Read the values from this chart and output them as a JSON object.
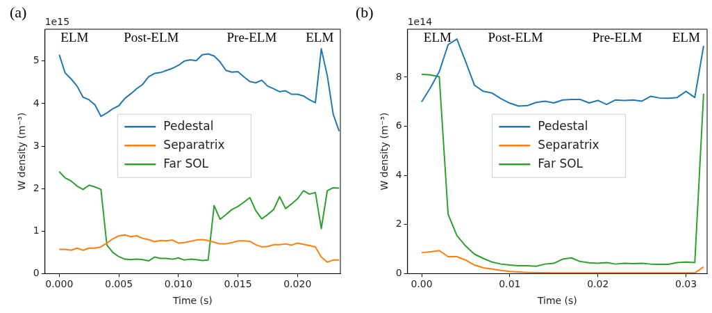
{
  "chart_data": [
    {
      "type": "line",
      "title": "(a)",
      "xlabel": "Time (s)",
      "ylabel": "W density (m⁻³)",
      "legend": "center",
      "x": [
        0,
        0.0005,
        0.001,
        0.0015,
        0.002,
        0.0025,
        0.003,
        0.0035,
        0.004,
        0.0045,
        0.005,
        0.0055,
        0.006,
        0.0065,
        0.007,
        0.0075,
        0.008,
        0.0085,
        0.009,
        0.0095,
        0.01,
        0.0105,
        0.011,
        0.0115,
        0.012,
        0.0125,
        0.013,
        0.0135,
        0.014,
        0.0145,
        0.015,
        0.0155,
        0.016,
        0.0165,
        0.017,
        0.0175,
        0.018,
        0.0185,
        0.019,
        0.0195,
        0.02,
        0.0205,
        0.021,
        0.0215,
        0.022,
        0.0225,
        0.023,
        0.0235
      ],
      "series": [
        {
          "name": "Pedestal",
          "color": "#1f77b4",
          "values": [
            5.15,
            4.72,
            4.58,
            4.41,
            4.15,
            4.09,
            3.97,
            3.7,
            3.78,
            3.88,
            3.95,
            4.12,
            4.23,
            4.35,
            4.45,
            4.63,
            4.71,
            4.73,
            4.78,
            4.83,
            4.9,
            5.0,
            5.03,
            5.01,
            5.15,
            5.17,
            5.12,
            4.98,
            4.78,
            4.74,
            4.75,
            4.63,
            4.52,
            4.49,
            4.55,
            4.41,
            4.35,
            4.28,
            4.3,
            4.22,
            4.22,
            4.18,
            4.09,
            4.02,
            5.29,
            4.66,
            3.75,
            3.35
          ]
        },
        {
          "name": "Separatrix",
          "color": "#ff7f0e",
          "values": [
            0.57,
            0.57,
            0.55,
            0.6,
            0.55,
            0.6,
            0.6,
            0.63,
            0.72,
            0.82,
            0.89,
            0.91,
            0.87,
            0.89,
            0.83,
            0.8,
            0.75,
            0.78,
            0.77,
            0.79,
            0.72,
            0.73,
            0.76,
            0.79,
            0.8,
            0.78,
            0.74,
            0.7,
            0.7,
            0.73,
            0.77,
            0.77,
            0.76,
            0.68,
            0.63,
            0.64,
            0.68,
            0.68,
            0.7,
            0.67,
            0.72,
            0.69,
            0.66,
            0.63,
            0.39,
            0.27,
            0.32,
            0.32
          ]
        },
        {
          "name": "Far SOL",
          "color": "#2ca02c",
          "values": [
            2.4,
            2.25,
            2.18,
            2.06,
            1.98,
            2.08,
            2.04,
            1.98,
            0.67,
            0.5,
            0.4,
            0.34,
            0.33,
            0.34,
            0.33,
            0.3,
            0.39,
            0.36,
            0.36,
            0.34,
            0.37,
            0.32,
            0.34,
            0.33,
            0.31,
            0.32,
            1.6,
            1.28,
            1.39,
            1.51,
            1.58,
            1.68,
            1.79,
            1.48,
            1.29,
            1.39,
            1.51,
            1.81,
            1.53,
            1.64,
            1.76,
            1.95,
            1.87,
            1.91,
            1.06,
            1.95,
            2.02,
            2.01
          ]
        }
      ],
      "xlim": [
        -0.0012,
        0.0236
      ],
      "ylim": [
        0,
        5.75
      ],
      "xticks": [
        {
          "value": 0,
          "label": "0.000"
        },
        {
          "value": 0.005,
          "label": "0.005"
        },
        {
          "value": 0.01,
          "label": "0.010"
        },
        {
          "value": 0.015,
          "label": "0.015"
        },
        {
          "value": 0.02,
          "label": "0.020"
        }
      ],
      "yticks": [
        0,
        1,
        2,
        3,
        4,
        5
      ],
      "annotations": [
        "1e15",
        "ELM",
        "Post-ELM",
        "Pre-ELM",
        "ELM"
      ]
    },
    {
      "type": "line",
      "title": "(b)",
      "xlabel": "Time (s)",
      "ylabel": "W density (m⁻³)",
      "legend": "center",
      "x": [
        0,
        0.001,
        0.002,
        0.003,
        0.004,
        0.005,
        0.006,
        0.007,
        0.008,
        0.009,
        0.01,
        0.011,
        0.012,
        0.013,
        0.014,
        0.015,
        0.016,
        0.017,
        0.018,
        0.019,
        0.02,
        0.021,
        0.022,
        0.023,
        0.024,
        0.025,
        0.026,
        0.027,
        0.028,
        0.029,
        0.03,
        0.031,
        0.032
      ],
      "series": [
        {
          "name": "Pedestal",
          "color": "#1f77b4",
          "values": [
            6.99,
            7.57,
            8.22,
            9.32,
            9.55,
            8.62,
            7.67,
            7.42,
            7.35,
            7.12,
            6.94,
            6.82,
            6.84,
            6.97,
            7.02,
            6.95,
            7.07,
            7.09,
            7.09,
            6.95,
            7.05,
            6.89,
            7.07,
            7.05,
            7.07,
            7.02,
            7.22,
            7.15,
            7.14,
            7.17,
            7.42,
            7.17,
            9.27
          ]
        },
        {
          "name": "Separatrix",
          "color": "#ff7f0e",
          "values": [
            0.85,
            0.89,
            0.94,
            0.69,
            0.69,
            0.55,
            0.35,
            0.24,
            0.19,
            0.13,
            0.09,
            0.07,
            0.05,
            0.04,
            0.04,
            0.03,
            0.03,
            0.03,
            0.03,
            0.03,
            0.03,
            0.03,
            0.03,
            0.03,
            0.03,
            0.03,
            0.03,
            0.03,
            0.03,
            0.03,
            0.03,
            0.03,
            0.27
          ]
        },
        {
          "name": "Far SOL",
          "color": "#2ca02c",
          "values": [
            8.12,
            8.09,
            8.02,
            2.42,
            1.55,
            1.12,
            0.79,
            0.62,
            0.47,
            0.39,
            0.35,
            0.32,
            0.32,
            0.3,
            0.39,
            0.42,
            0.59,
            0.64,
            0.49,
            0.44,
            0.42,
            0.45,
            0.39,
            0.42,
            0.41,
            0.42,
            0.39,
            0.38,
            0.38,
            0.45,
            0.47,
            0.45,
            7.32
          ]
        }
      ],
      "xlim": [
        -0.0016,
        0.0324
      ],
      "ylim": [
        0,
        9.95
      ],
      "xticks": [
        {
          "value": 0,
          "label": "0.00"
        },
        {
          "value": 0.01,
          "label": "0.01"
        },
        {
          "value": 0.02,
          "label": "0.02"
        },
        {
          "value": 0.03,
          "label": "0.03"
        }
      ],
      "yticks": [
        0,
        2,
        4,
        6,
        8
      ],
      "annotations": [
        "1e14",
        "ELM",
        "Post-ELM",
        "Pre-ELM",
        "ELM"
      ]
    }
  ]
}
